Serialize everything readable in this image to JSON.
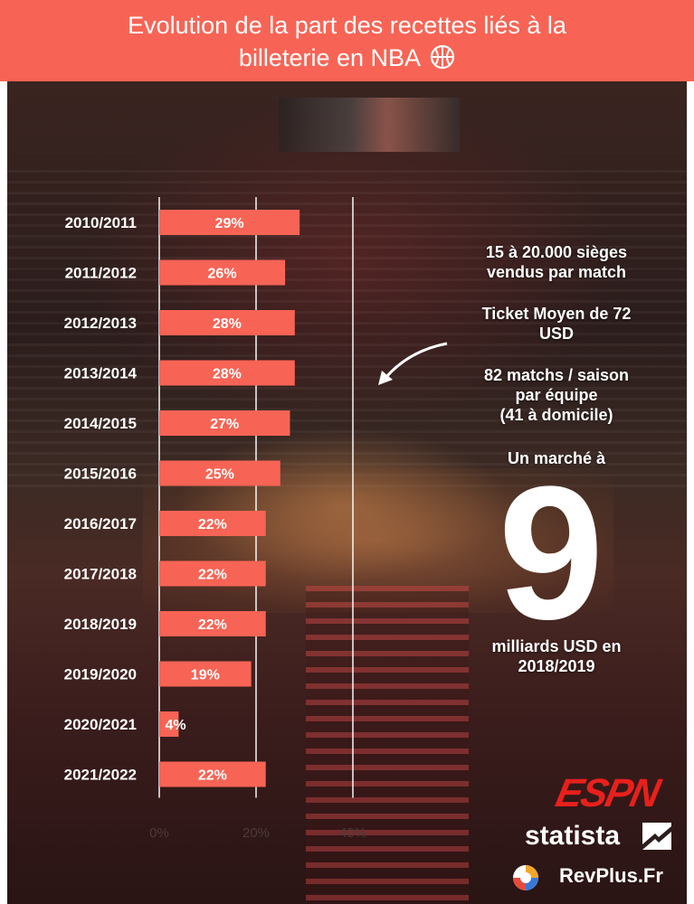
{
  "title_line1": "Evolution de la part des recettes liés à la",
  "title_line2": "billeterie en NBA",
  "icons": {
    "title": "basketball-icon",
    "arrow": "curved-arrow-icon",
    "brand": "revplus-logo-icon",
    "statista": "statista-logo-icon"
  },
  "colors": {
    "accent": "#f76455",
    "bar": "#f76455",
    "espn": "#e8201c"
  },
  "chart_data": {
    "type": "bar",
    "orientation": "horizontal",
    "categories": [
      "2010/2011",
      "2011/2012",
      "2012/2013",
      "2013/2014",
      "2014/2015",
      "2015/2016",
      "2016/2017",
      "2017/2018",
      "2018/2019",
      "2019/2020",
      "2020/2021",
      "2021/2022"
    ],
    "values": [
      29,
      26,
      28,
      28,
      27,
      25,
      22,
      22,
      22,
      19,
      4,
      22
    ],
    "value_labels": [
      "29%",
      "26%",
      "28%",
      "28%",
      "27%",
      "25%",
      "22%",
      "22%",
      "22%",
      "19%",
      "4%",
      "22%"
    ],
    "x_ticks": [
      0,
      20,
      40
    ],
    "x_tick_labels": [
      "0%",
      "20%",
      "40%"
    ],
    "xlim": [
      0,
      40
    ],
    "grid": true
  },
  "facts": {
    "seats_line1": "15 à 20.000 sièges",
    "seats_line2": "vendus par match",
    "ticket_line1": "Ticket Moyen de 72",
    "ticket_line2": "USD",
    "matches_line1": "82 matchs / saison",
    "matches_line2": "par équipe",
    "matches_line3": "(41 à domicile)",
    "market_intro": "Un marché à",
    "market_value": "9",
    "market_line1": "milliards USD en",
    "market_line2": "2018/2019"
  },
  "brands": {
    "espn": "ESPN",
    "statista": "statista",
    "revplus": "RevPlus.Fr"
  }
}
